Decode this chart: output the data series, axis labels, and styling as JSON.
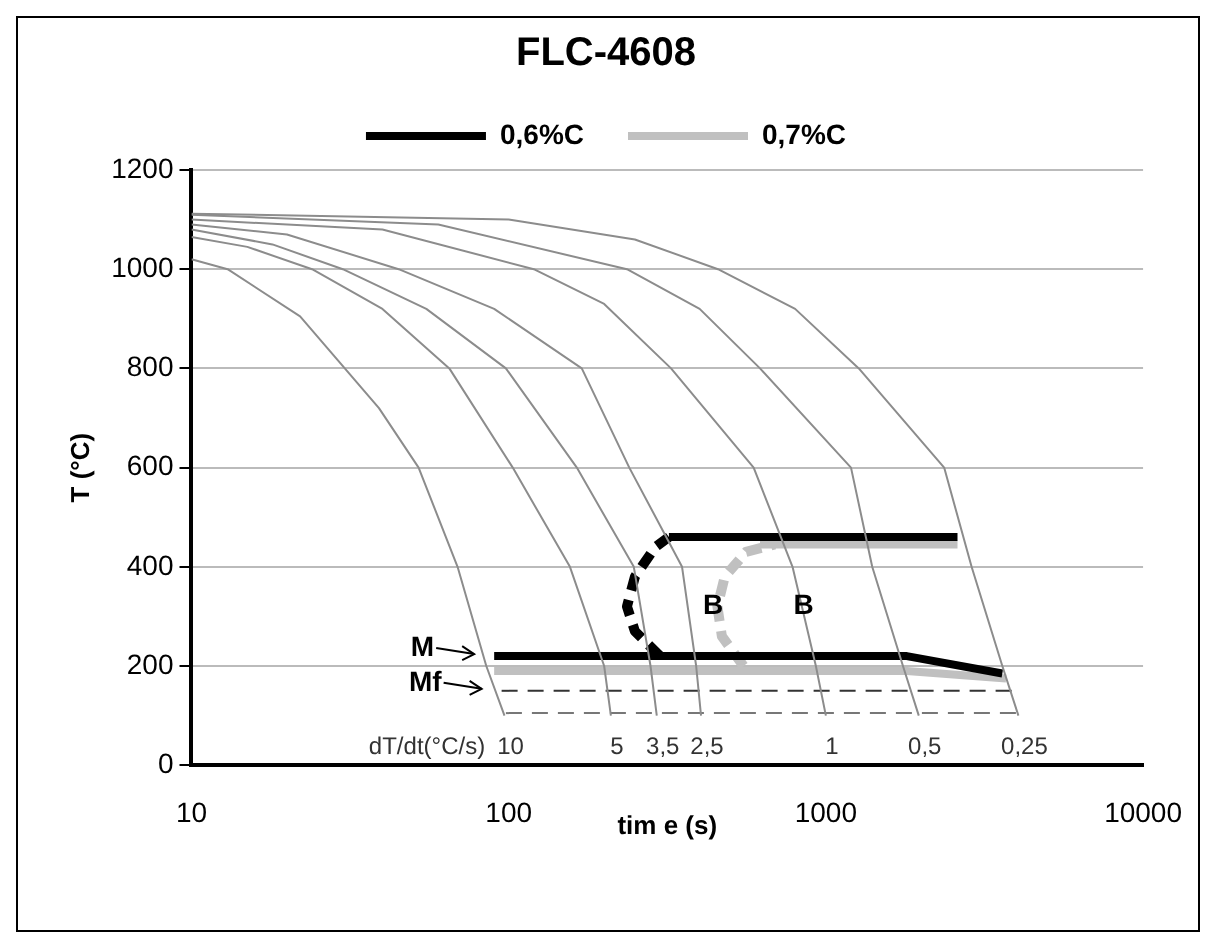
{
  "chart_data": {
    "type": "line",
    "title": "FLC-4608",
    "xlabel": "tim e (s)",
    "ylabel": "T (°C)",
    "log": "x",
    "xlim": [
      10,
      10000
    ],
    "xticks": [
      10,
      100,
      1000,
      10000
    ],
    "ylim": [
      0,
      1200
    ],
    "yticks": [
      0,
      200,
      400,
      600,
      800,
      1000,
      1200
    ],
    "grid": "y",
    "legend": "top",
    "marker": "none",
    "line_style": "solid",
    "series": [
      {
        "color": "#8c8c8c",
        "x": [
          10,
          13,
          22,
          39,
          52,
          69,
          85,
          97
        ],
        "values": [
          1020,
          1000,
          905,
          720,
          600,
          400,
          200,
          100
        ]
      },
      {
        "color": "#8c8c8c",
        "x": [
          10,
          15,
          24,
          40,
          65,
          103,
          156,
          200,
          210
        ],
        "values": [
          1065,
          1045,
          1000,
          920,
          800,
          600,
          400,
          200,
          100
        ]
      },
      {
        "color": "#8c8c8c",
        "x": [
          10,
          18,
          30,
          55,
          98,
          164,
          248,
          280,
          293
        ],
        "values": [
          1080,
          1050,
          1000,
          920,
          800,
          600,
          400,
          200,
          100
        ]
      },
      {
        "color": "#8c8c8c",
        "x": [
          10,
          20,
          45,
          90,
          170,
          240,
          352,
          390,
          404
        ],
        "values": [
          1090,
          1070,
          1000,
          920,
          800,
          600,
          400,
          200,
          100
        ]
      },
      {
        "color": "#8c8c8c",
        "x": [
          10,
          40,
          120,
          200,
          325,
          592,
          785,
          930,
          1000
        ],
        "values": [
          1100,
          1080,
          1000,
          930,
          800,
          600,
          400,
          200,
          100
        ]
      },
      {
        "color": "#8c8c8c",
        "x": [
          10,
          60,
          236,
          400,
          620,
          1200,
          1400,
          1750,
          1963
        ],
        "values": [
          1110,
          1090,
          1000,
          920,
          800,
          600,
          400,
          200,
          100
        ]
      },
      {
        "color": "#8c8c8c",
        "x": [
          10,
          100,
          250,
          457,
          800,
          1270,
          2360,
          2880,
          3600,
          4046
        ],
        "values": [
          1112,
          1100,
          1060,
          1000,
          920,
          800,
          600,
          400,
          200,
          100
        ]
      },
      {
        "name": "0,6%C",
        "color": "#000000",
        "x": [
          90,
          1800,
          3600
        ],
        "values": [
          220,
          220,
          185
        ]
      },
      {
        "name": "0,7%C",
        "color": "#c0c0c0",
        "x": [
          90,
          1800,
          3700
        ],
        "values": [
          190,
          190,
          175
        ]
      },
      {
        "color": "#000000",
        "x": [
          320,
          2600
        ],
        "values": [
          460,
          460
        ]
      },
      {
        "color": "#c0c0c0",
        "x": [
          620,
          2600
        ],
        "values": [
          445,
          445
        ]
      },
      {
        "color": "#000000",
        "line_style": "dashed",
        "x": [
          300,
          250,
          236,
          250,
          290,
          320
        ],
        "values": [
          220,
          270,
          320,
          380,
          440,
          460
        ]
      },
      {
        "color": "#c0c0c0",
        "line_style": "dashed",
        "x": [
          550,
          470,
          455,
          480,
          560,
          690
        ],
        "values": [
          200,
          260,
          320,
          380,
          430,
          445
        ]
      },
      {
        "color": "#333333",
        "line_style": "dashed",
        "x": [
          95,
          4000
        ],
        "values": [
          150,
          150
        ]
      },
      {
        "color": "#777777",
        "line_style": "dashed",
        "x": [
          98,
          4000
        ],
        "values": [
          105,
          105
        ]
      }
    ],
    "annotations": [
      {
        "text": "M",
        "x": 90,
        "y": 220
      },
      {
        "text": "Mf",
        "x": 95,
        "y": 150
      },
      {
        "text": "B",
        "x": 236,
        "y": 320
      },
      {
        "text": "B",
        "x": 455,
        "y": 320
      },
      "dT/dt(°C/s)",
      {
        "text": "10",
        "x": 97,
        "y": 100
      },
      {
        "text": "5",
        "x": 210,
        "y": 100
      },
      {
        "text": "3,5",
        "x": 293,
        "y": 100
      },
      {
        "text": "2,5",
        "x": 404,
        "y": 100
      },
      {
        "text": "1",
        "x": 1000,
        "y": 100
      },
      {
        "text": "0,5",
        "x": 1963,
        "y": 100
      },
      {
        "text": "0,25",
        "x": 4046,
        "y": 100
      }
    ]
  }
}
